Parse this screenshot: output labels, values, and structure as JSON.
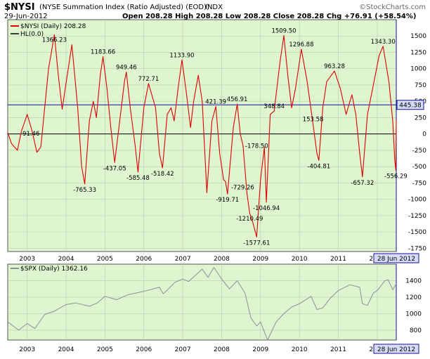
{
  "header": {
    "symbol": "$NYSI",
    "description": "(NYSE Summation Index (Ratio Adjusted) (EOD))",
    "exchange": "INDX",
    "date": "29-Jun-2012",
    "ohlc": "Open 208.28  High 208.28  Low 208.28  Close 208.28  Chg +76.91 (+58.54%)",
    "brand": "©StockCharts.com"
  },
  "colors": {
    "panel_bg": "#dff5cf",
    "nysi_line": "#dd0000",
    "spx_line": "#8a8f99",
    "ref_line": "#1010a0",
    "marker_bg": "#d6dcf5"
  },
  "chart_data": [
    {
      "type": "line",
      "title": "$NYSI (Daily) 208.28",
      "legend": [
        "$NYSI (Daily) 208.28",
        "HL(0.0)"
      ],
      "legend_position": "top-left",
      "x_ticks": [
        "2003",
        "2004",
        "2005",
        "2006",
        "2007",
        "2008",
        "2009",
        "2010",
        "2011",
        "2012"
      ],
      "ylim": [
        -1800,
        1750
      ],
      "y_ticks": [
        1500,
        1250,
        1000,
        750,
        500,
        250,
        0,
        -250,
        -500,
        -750,
        -1000,
        -1250,
        -1500,
        -1750
      ],
      "y_tick_labels": [
        "1500",
        "1250",
        "1000",
        "750",
        "500",
        "250",
        "0",
        "-250",
        "-500",
        "-750",
        "-1000",
        "-1250",
        "-1500",
        "-1750"
      ],
      "hline_value": 0,
      "marker_line_value": 445.38,
      "marker_label": "445.38",
      "date_marker": "28 Jun 2012",
      "grid": true,
      "series": [
        {
          "name": "$NYSI (Daily) 208.28",
          "points": [
            [
              2002.5,
              20
            ],
            [
              2002.6,
              -150
            ],
            [
              2002.75,
              -250
            ],
            [
              2002.85,
              40
            ],
            [
              2003.0,
              300
            ],
            [
              2003.12,
              60
            ],
            [
              2003.25,
              -280
            ],
            [
              2003.35,
              -200
            ],
            [
              2003.55,
              1000
            ],
            [
              2003.7,
              1520
            ],
            [
              2003.8,
              900
            ],
            [
              2003.9,
              380
            ],
            [
              2003.98,
              700
            ],
            [
              2004.15,
              1366.23
            ],
            [
              2004.3,
              400
            ],
            [
              2004.4,
              -500
            ],
            [
              2004.48,
              -765.33
            ],
            [
              2004.6,
              200
            ],
            [
              2004.7,
              500
            ],
            [
              2004.78,
              250
            ],
            [
              2004.88,
              900
            ],
            [
              2004.95,
              1183.66
            ],
            [
              2005.05,
              700
            ],
            [
              2005.15,
              100
            ],
            [
              2005.25,
              -437.05
            ],
            [
              2005.4,
              300
            ],
            [
              2005.5,
              800
            ],
            [
              2005.55,
              949.46
            ],
            [
              2005.65,
              400
            ],
            [
              2005.78,
              -200
            ],
            [
              2005.85,
              -585.48
            ],
            [
              2006.0,
              400
            ],
            [
              2006.12,
              772.71
            ],
            [
              2006.3,
              400
            ],
            [
              2006.4,
              -300
            ],
            [
              2006.48,
              -518.42
            ],
            [
              2006.6,
              300
            ],
            [
              2006.7,
              400
            ],
            [
              2006.78,
              200
            ],
            [
              2006.88,
              700
            ],
            [
              2006.98,
              1133.9
            ],
            [
              2007.1,
              600
            ],
            [
              2007.2,
              100
            ],
            [
              2007.28,
              500
            ],
            [
              2007.4,
              900
            ],
            [
              2007.5,
              500
            ],
            [
              2007.62,
              -900
            ],
            [
              2007.75,
              200
            ],
            [
              2007.85,
              421.39
            ],
            [
              2007.95,
              -300
            ],
            [
              2008.05,
              -700
            ],
            [
              2008.1,
              -729.26
            ],
            [
              2008.15,
              -919.71
            ],
            [
              2008.3,
              100
            ],
            [
              2008.4,
              456.91
            ],
            [
              2008.48,
              0
            ],
            [
              2008.55,
              -178.5
            ],
            [
              2008.65,
              -900
            ],
            [
              2008.72,
              -1210.49
            ],
            [
              2008.8,
              -1350
            ],
            [
              2008.9,
              -1577.61
            ],
            [
              2009.0,
              -700
            ],
            [
              2009.1,
              -200
            ],
            [
              2009.15,
              -1046.94
            ],
            [
              2009.25,
              300
            ],
            [
              2009.35,
              348.84
            ],
            [
              2009.5,
              1100
            ],
            [
              2009.6,
              1509.5
            ],
            [
              2009.7,
              900
            ],
            [
              2009.8,
              400
            ],
            [
              2009.9,
              700
            ],
            [
              2010.05,
              1296.88
            ],
            [
              2010.2,
              800
            ],
            [
              2010.35,
              153.58
            ],
            [
              2010.45,
              -300
            ],
            [
              2010.5,
              -404.81
            ],
            [
              2010.6,
              400
            ],
            [
              2010.7,
              800
            ],
            [
              2010.9,
              963.28
            ],
            [
              2011.05,
              700
            ],
            [
              2011.2,
              300
            ],
            [
              2011.35,
              600
            ],
            [
              2011.45,
              300
            ],
            [
              2011.55,
              -300
            ],
            [
              2011.62,
              -657.32
            ],
            [
              2011.75,
              300
            ],
            [
              2011.85,
              600
            ],
            [
              2011.95,
              900
            ],
            [
              2012.05,
              1200
            ],
            [
              2012.15,
              1343.3
            ],
            [
              2012.3,
              800
            ],
            [
              2012.4,
              200
            ],
            [
              2012.45,
              -400
            ],
            [
              2012.48,
              -556.29
            ],
            [
              2012.49,
              208.28
            ]
          ]
        }
      ],
      "annotations": [
        {
          "x": 2003.7,
          "y": 1366.23,
          "text": "1366.23",
          "pos": "above"
        },
        {
          "x": 2003.1,
          "y": 91.46,
          "text": "91.46",
          "pos": "below"
        },
        {
          "x": 2004.48,
          "y": -765.33,
          "text": "-765.33",
          "pos": "below"
        },
        {
          "x": 2004.95,
          "y": 1183.66,
          "text": "1183.66",
          "pos": "above"
        },
        {
          "x": 2005.25,
          "y": -437.05,
          "text": "-437.05",
          "pos": "below"
        },
        {
          "x": 2005.55,
          "y": 949.46,
          "text": "949.46",
          "pos": "above"
        },
        {
          "x": 2005.85,
          "y": -585.48,
          "text": "-585.48",
          "pos": "below"
        },
        {
          "x": 2006.12,
          "y": 772.71,
          "text": "772.71",
          "pos": "above"
        },
        {
          "x": 2006.48,
          "y": -518.42,
          "text": "-518.42",
          "pos": "below"
        },
        {
          "x": 2006.98,
          "y": 1133.9,
          "text": "1133.90",
          "pos": "above"
        },
        {
          "x": 2007.85,
          "y": 421.39,
          "text": "421.39",
          "pos": "above"
        },
        {
          "x": 2008.15,
          "y": -919.71,
          "text": "-919.71",
          "pos": "below"
        },
        {
          "x": 2008.1,
          "y": -729.26,
          "text": "-729.26",
          "pos": "belowright"
        },
        {
          "x": 2008.4,
          "y": 456.91,
          "text": "456.91",
          "pos": "above"
        },
        {
          "x": 2008.55,
          "y": -178.5,
          "text": "-178.50",
          "pos": "right"
        },
        {
          "x": 2008.72,
          "y": -1210.49,
          "text": "-1210.49",
          "pos": "below"
        },
        {
          "x": 2008.9,
          "y": -1577.61,
          "text": "-1577.61",
          "pos": "below"
        },
        {
          "x": 2009.15,
          "y": -1046.94,
          "text": "-1046.94",
          "pos": "below"
        },
        {
          "x": 2009.35,
          "y": 348.84,
          "text": "348.84",
          "pos": "above"
        },
        {
          "x": 2009.6,
          "y": 1509.5,
          "text": "1509.50",
          "pos": "above"
        },
        {
          "x": 2010.05,
          "y": 1296.88,
          "text": "1296.88",
          "pos": "above"
        },
        {
          "x": 2010.35,
          "y": 153.58,
          "text": "153.58",
          "pos": "above"
        },
        {
          "x": 2010.5,
          "y": -404.81,
          "text": "-404.81",
          "pos": "below"
        },
        {
          "x": 2010.9,
          "y": 963.28,
          "text": "963.28",
          "pos": "above"
        },
        {
          "x": 2011.62,
          "y": -657.32,
          "text": "-657.32",
          "pos": "below"
        },
        {
          "x": 2012.15,
          "y": 1343.3,
          "text": "1343.30",
          "pos": "above"
        },
        {
          "x": 2012.48,
          "y": -556.29,
          "text": "-556.29",
          "pos": "below"
        }
      ]
    },
    {
      "type": "line",
      "title": "$SPX (Daily) 1362.16",
      "legend": [
        "$SPX (Daily) 1362.16"
      ],
      "legend_position": "top-left",
      "x_ticks": [
        "2003",
        "2004",
        "2005",
        "2006",
        "2007",
        "2008",
        "2009",
        "2010",
        "2011",
        "2012"
      ],
      "ylim": [
        680,
        1600
      ],
      "y_ticks": [
        1400,
        1200,
        1000,
        800
      ],
      "y_tick_labels": [
        "1400",
        "1200",
        "1000",
        "800"
      ],
      "date_marker": "28 Jun 2012",
      "grid": true,
      "series": [
        {
          "name": "$SPX (Daily) 1362.16",
          "points": [
            [
              2002.5,
              900
            ],
            [
              2002.78,
              800
            ],
            [
              2003.0,
              880
            ],
            [
              2003.2,
              820
            ],
            [
              2003.45,
              990
            ],
            [
              2003.7,
              1030
            ],
            [
              2004.0,
              1110
            ],
            [
              2004.25,
              1130
            ],
            [
              2004.6,
              1090
            ],
            [
              2004.8,
              1130
            ],
            [
              2005.0,
              1210
            ],
            [
              2005.3,
              1170
            ],
            [
              2005.6,
              1230
            ],
            [
              2006.0,
              1270
            ],
            [
              2006.4,
              1320
            ],
            [
              2006.5,
              1240
            ],
            [
              2006.8,
              1380
            ],
            [
              2007.0,
              1420
            ],
            [
              2007.15,
              1390
            ],
            [
              2007.5,
              1540
            ],
            [
              2007.65,
              1440
            ],
            [
              2007.8,
              1560
            ],
            [
              2008.0,
              1420
            ],
            [
              2008.2,
              1300
            ],
            [
              2008.4,
              1400
            ],
            [
              2008.6,
              1250
            ],
            [
              2008.75,
              950
            ],
            [
              2008.9,
              850
            ],
            [
              2009.0,
              900
            ],
            [
              2009.18,
              680
            ],
            [
              2009.4,
              900
            ],
            [
              2009.6,
              1000
            ],
            [
              2009.8,
              1080
            ],
            [
              2010.0,
              1120
            ],
            [
              2010.3,
              1210
            ],
            [
              2010.45,
              1050
            ],
            [
              2010.6,
              1070
            ],
            [
              2010.8,
              1190
            ],
            [
              2011.0,
              1280
            ],
            [
              2011.3,
              1350
            ],
            [
              2011.55,
              1320
            ],
            [
              2011.62,
              1120
            ],
            [
              2011.75,
              1100
            ],
            [
              2011.9,
              1250
            ],
            [
              2012.0,
              1280
            ],
            [
              2012.2,
              1400
            ],
            [
              2012.28,
              1410
            ],
            [
              2012.4,
              1290
            ],
            [
              2012.49,
              1362.16
            ]
          ]
        }
      ]
    }
  ]
}
